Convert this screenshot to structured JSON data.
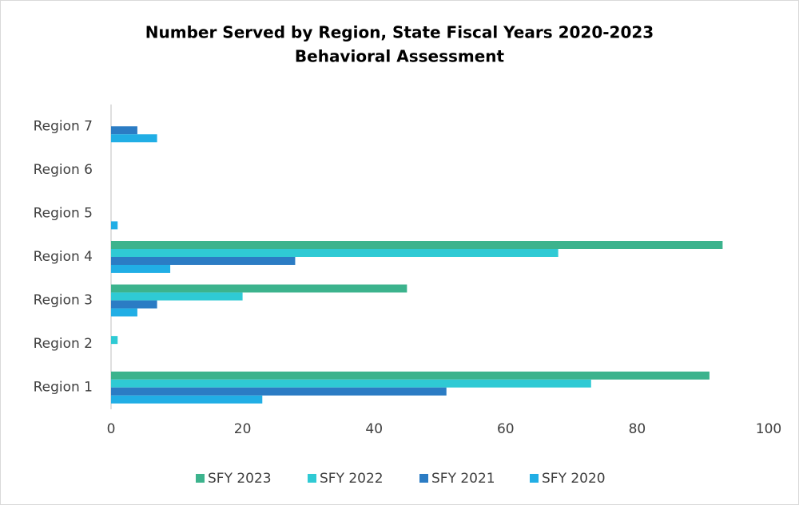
{
  "chart_data": {
    "type": "hbar",
    "title": "Number Served by Region, State Fiscal Years 2020-2023",
    "subtitle": "Behavioral Assessment",
    "categories": [
      "Region 1",
      "Region 2",
      "Region 3",
      "Region 4",
      "Region 5",
      "Region 6",
      "Region 7"
    ],
    "series": [
      {
        "name": "SFY 2023",
        "color": "#3cb38d",
        "values": [
          91,
          0,
          45,
          93,
          0,
          0,
          0
        ]
      },
      {
        "name": "SFY 2022",
        "color": "#2fcad4",
        "values": [
          73,
          1,
          20,
          68,
          0,
          0,
          0
        ]
      },
      {
        "name": "SFY 2021",
        "color": "#2b7cc4",
        "values": [
          51,
          0,
          7,
          28,
          0,
          0,
          4
        ]
      },
      {
        "name": "SFY 2020",
        "color": "#21aee5",
        "values": [
          23,
          0,
          4,
          9,
          1,
          0,
          7
        ]
      }
    ],
    "xlim": [
      0,
      100
    ],
    "xticks": [
      0,
      20,
      40,
      60,
      80,
      100
    ],
    "legend": "bottom"
  }
}
